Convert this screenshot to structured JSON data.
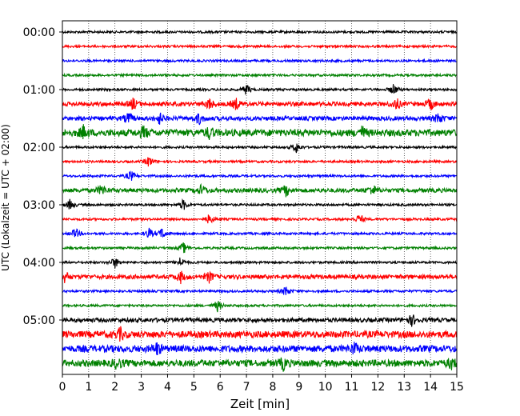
{
  "chart_data": {
    "type": "line",
    "title": "",
    "xlabel": "Zeit  [min]",
    "ylabel": "UTC (Lokalzeit = UTC + 02:00)",
    "xlim": [
      0,
      15
    ],
    "x_ticks": [
      "0",
      "1",
      "2",
      "3",
      "4",
      "5",
      "6",
      "7",
      "8",
      "9",
      "10",
      "11",
      "12",
      "13",
      "14",
      "15"
    ],
    "y_tick_labels": [
      "00:00",
      "01:00",
      "02:00",
      "03:00",
      "04:00",
      "05:00"
    ],
    "vertical_grid": "dotted",
    "trace_interval_minutes": 15,
    "trace_colors_cycle": [
      "#000000",
      "#ff0000",
      "#0000ff",
      "#008000"
    ],
    "traces": [
      {
        "start": "00:00",
        "color": "#000000",
        "amplitude": "low",
        "events": []
      },
      {
        "start": "00:15",
        "color": "#ff0000",
        "amplitude": "low",
        "events": []
      },
      {
        "start": "00:30",
        "color": "#0000ff",
        "amplitude": "low",
        "events": []
      },
      {
        "start": "00:45",
        "color": "#008000",
        "amplitude": "low",
        "events": []
      },
      {
        "start": "01:00",
        "color": "#000000",
        "amplitude": "low",
        "events": [
          7.0,
          12.6
        ]
      },
      {
        "start": "01:15",
        "color": "#ff0000",
        "amplitude": "medium",
        "events": [
          2.7,
          5.6,
          6.6,
          12.7,
          14.0
        ]
      },
      {
        "start": "01:30",
        "color": "#0000ff",
        "amplitude": "medium",
        "events": [
          2.5,
          3.7,
          5.2,
          14.3
        ]
      },
      {
        "start": "01:45",
        "color": "#008000",
        "amplitude": "high",
        "events": [
          0.8,
          3.1,
          5.6,
          11.4
        ]
      },
      {
        "start": "02:00",
        "color": "#000000",
        "amplitude": "low",
        "events": [
          8.9
        ]
      },
      {
        "start": "02:15",
        "color": "#ff0000",
        "amplitude": "low",
        "events": [
          3.3
        ]
      },
      {
        "start": "02:30",
        "color": "#0000ff",
        "amplitude": "low",
        "events": [
          2.6
        ]
      },
      {
        "start": "02:45",
        "color": "#008000",
        "amplitude": "medium",
        "events": [
          1.5,
          5.3,
          8.5,
          11.8
        ]
      },
      {
        "start": "03:00",
        "color": "#000000",
        "amplitude": "low",
        "events": [
          0.3,
          4.6
        ]
      },
      {
        "start": "03:15",
        "color": "#ff0000",
        "amplitude": "low",
        "events": [
          5.6,
          11.3
        ]
      },
      {
        "start": "03:30",
        "color": "#0000ff",
        "amplitude": "low",
        "events": [
          0.5,
          3.3,
          3.8
        ]
      },
      {
        "start": "03:45",
        "color": "#008000",
        "amplitude": "low",
        "events": [
          4.6
        ]
      },
      {
        "start": "04:00",
        "color": "#000000",
        "amplitude": "low",
        "events": [
          2.0,
          4.5
        ]
      },
      {
        "start": "04:15",
        "color": "#ff0000",
        "amplitude": "medium",
        "events": [
          0.1,
          4.5,
          5.6
        ]
      },
      {
        "start": "04:30",
        "color": "#0000ff",
        "amplitude": "low",
        "events": [
          8.5
        ]
      },
      {
        "start": "04:45",
        "color": "#008000",
        "amplitude": "low",
        "events": [
          5.9
        ]
      },
      {
        "start": "05:00",
        "color": "#000000",
        "amplitude": "medium",
        "events": [
          13.3
        ]
      },
      {
        "start": "05:15",
        "color": "#ff0000",
        "amplitude": "high",
        "events": [
          2.2
        ]
      },
      {
        "start": "05:30",
        "color": "#0000ff",
        "amplitude": "high",
        "events": [
          3.6,
          11.1
        ]
      },
      {
        "start": "05:45",
        "color": "#008000",
        "amplitude": "high",
        "events": [
          2.1,
          8.4,
          14.8
        ]
      }
    ]
  }
}
